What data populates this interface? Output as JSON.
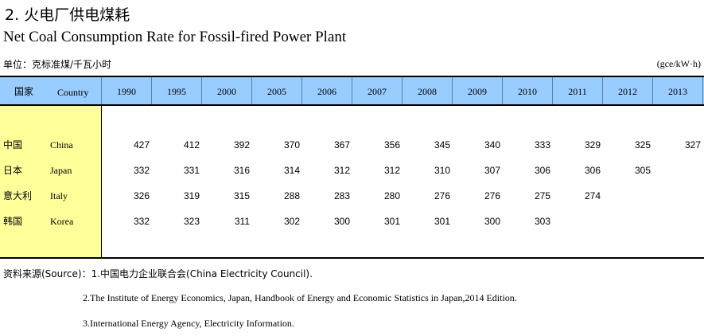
{
  "title_cn": "2.  火电厂供电煤耗",
  "title_en": "Net Coal Consumption Rate for Fossil-fired Power Plant",
  "unit_cn": "单位：克标准煤/千瓦小时",
  "unit_en": "(gce/kW·h)",
  "header": {
    "country_cn": "国家",
    "country_en": "Country",
    "years": [
      "1990",
      "1995",
      "2000",
      "2005",
      "2006",
      "2007",
      "2008",
      "2009",
      "2010",
      "2011",
      "2012",
      "2013"
    ]
  },
  "rows": [
    {
      "cn": "中国",
      "en": "China",
      "values": [
        "427",
        "412",
        "392",
        "370",
        "367",
        "356",
        "345",
        "340",
        "333",
        "329",
        "325",
        "327"
      ]
    },
    {
      "cn": "日本",
      "en": "Japan",
      "values": [
        "332",
        "331",
        "316",
        "314",
        "312",
        "312",
        "310",
        "307",
        "306",
        "306",
        "305",
        ""
      ]
    },
    {
      "cn": "意大利",
      "en": "Italy",
      "values": [
        "326",
        "319",
        "315",
        "288",
        "283",
        "280",
        "276",
        "276",
        "275",
        "274",
        "",
        ""
      ]
    },
    {
      "cn": "韩国",
      "en": "Korea",
      "values": [
        "332",
        "323",
        "311",
        "302",
        "300",
        "301",
        "301",
        "300",
        "303",
        "",
        "",
        ""
      ]
    }
  ],
  "sources": {
    "label": "资料来源(Source)：",
    "s1": "1.中国电力企业联合会(China Electricity Council).",
    "s2": "2.The Institute of Energy Economics, Japan, Handbook of Energy and Economic Statistics in Japan,2014 Edition.",
    "s3": "3.International Energy Agency, Electricity Information."
  }
}
